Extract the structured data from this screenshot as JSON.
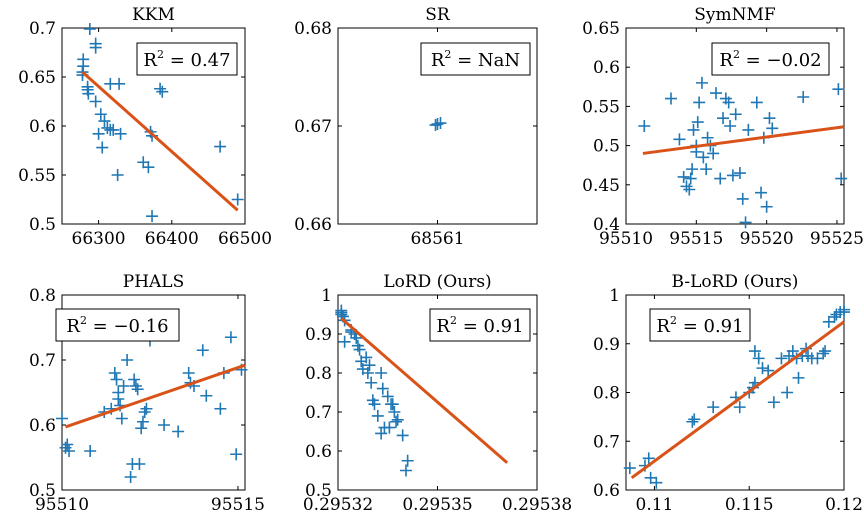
{
  "colors": {
    "points": "#1f77b4",
    "fit": "#d95319"
  },
  "chart_data": [
    {
      "type": "scatter",
      "title": "KKM",
      "r2_label": "0.47",
      "xlim": [
        66250,
        66500
      ],
      "ylim": [
        0.5,
        0.7
      ],
      "xticks": [
        66300,
        66400,
        66500
      ],
      "xtick_labels": [
        "66300",
        "66400",
        "66500"
      ],
      "yticks": [
        0.5,
        0.55,
        0.6,
        0.65,
        0.7
      ],
      "ytick_labels": [
        "0.5",
        "0.55",
        "0.6",
        "0.65",
        "0.7"
      ],
      "fit": [
        [
          66278,
          0.655
        ],
        [
          66490,
          0.514
        ]
      ],
      "points": [
        [
          66288,
          0.699
        ],
        [
          66296,
          0.684
        ],
        [
          66296,
          0.68
        ],
        [
          66279,
          0.668
        ],
        [
          66279,
          0.661
        ],
        [
          66278,
          0.655
        ],
        [
          66278,
          0.652
        ],
        [
          66285,
          0.64
        ],
        [
          66285,
          0.637
        ],
        [
          66286,
          0.633
        ],
        [
          66316,
          0.643
        ],
        [
          66328,
          0.643
        ],
        [
          66296,
          0.625
        ],
        [
          66303,
          0.612
        ],
        [
          66308,
          0.605
        ],
        [
          66312,
          0.598
        ],
        [
          66316,
          0.596
        ],
        [
          66320,
          0.596
        ],
        [
          66300,
          0.592
        ],
        [
          66330,
          0.592
        ],
        [
          66305,
          0.578
        ],
        [
          66326,
          0.55
        ],
        [
          66361,
          0.563
        ],
        [
          66368,
          0.558
        ],
        [
          66371,
          0.594
        ],
        [
          66373,
          0.59
        ],
        [
          66384,
          0.638
        ],
        [
          66387,
          0.635
        ],
        [
          66373,
          0.508
        ],
        [
          66466,
          0.579
        ],
        [
          66490,
          0.525
        ]
      ]
    },
    {
      "type": "scatter",
      "title": "SR",
      "r2_label": "NaN",
      "xlim": [
        68560,
        68562
      ],
      "ylim": [
        0.66,
        0.68
      ],
      "xticks": [
        68561
      ],
      "xtick_labels": [
        "68561"
      ],
      "yticks": [
        0.66,
        0.67,
        0.68
      ],
      "ytick_labels": [
        "0.66",
        "0.67",
        "0.68"
      ],
      "fit": [],
      "points": [
        [
          68561.0,
          0.6702
        ],
        [
          68561.03,
          0.6703
        ],
        [
          68560.98,
          0.6701
        ]
      ]
    },
    {
      "type": "scatter",
      "title": "SymNMF",
      "r2_label": "−0.02",
      "xlim": [
        95510,
        95525.5
      ],
      "ylim": [
        0.4,
        0.65
      ],
      "xticks": [
        95510,
        95515,
        95520,
        95525
      ],
      "xtick_labels": [
        "95510",
        "95515",
        "95520",
        "95525"
      ],
      "yticks": [
        0.4,
        0.45,
        0.5,
        0.55,
        0.6,
        0.65
      ],
      "ytick_labels": [
        "0.4",
        "0.45",
        "0.5",
        "0.55",
        "0.6",
        "0.65"
      ],
      "fit": [
        [
          95511.2,
          0.49
        ],
        [
          95525.5,
          0.524
        ]
      ],
      "points": [
        [
          95511.3,
          0.525
        ],
        [
          95513.2,
          0.56
        ],
        [
          95513.8,
          0.508
        ],
        [
          95514.1,
          0.46
        ],
        [
          95514.3,
          0.448
        ],
        [
          95514.5,
          0.444
        ],
        [
          95514.6,
          0.458
        ],
        [
          95514.7,
          0.47
        ],
        [
          95514.8,
          0.52
        ],
        [
          95515.0,
          0.5
        ],
        [
          95515.0,
          0.492
        ],
        [
          95515.1,
          0.53
        ],
        [
          95515.2,
          0.555
        ],
        [
          95515.4,
          0.58
        ],
        [
          95515.5,
          0.485
        ],
        [
          95515.7,
          0.47
        ],
        [
          95515.8,
          0.51
        ],
        [
          95516.0,
          0.5
        ],
        [
          95516.2,
          0.49
        ],
        [
          95516.4,
          0.567
        ],
        [
          95516.7,
          0.458
        ],
        [
          95516.9,
          0.535
        ],
        [
          95517.1,
          0.56
        ],
        [
          95517.3,
          0.555
        ],
        [
          95517.4,
          0.525
        ],
        [
          95517.6,
          0.462
        ],
        [
          95517.8,
          0.54
        ],
        [
          95518.1,
          0.465
        ],
        [
          95518.3,
          0.432
        ],
        [
          95518.5,
          0.402
        ],
        [
          95518.7,
          0.52
        ],
        [
          95519.3,
          0.555
        ],
        [
          95519.6,
          0.44
        ],
        [
          95519.8,
          0.51
        ],
        [
          95520.0,
          0.422
        ],
        [
          95520.2,
          0.535
        ],
        [
          95520.4,
          0.522
        ],
        [
          95522.6,
          0.562
        ],
        [
          95525.1,
          0.572
        ],
        [
          95525.3,
          0.458
        ]
      ]
    },
    {
      "type": "scatter",
      "title": "PHALS",
      "r2_label": "−0.16",
      "xlim": [
        95510,
        95515.2
      ],
      "ylim": [
        0.5,
        0.8
      ],
      "xticks": [
        95510,
        95515
      ],
      "xtick_labels": [
        "95510",
        "95515"
      ],
      "yticks": [
        0.5,
        0.6,
        0.7,
        0.8
      ],
      "ytick_labels": [
        "0.5",
        "0.6",
        "0.7",
        "0.8"
      ],
      "fit": [
        [
          95510.1,
          0.597
        ],
        [
          95515.2,
          0.692
        ]
      ],
      "points": [
        [
          95510.0,
          0.61
        ],
        [
          95510.1,
          0.565
        ],
        [
          95510.15,
          0.57
        ],
        [
          95510.2,
          0.56
        ],
        [
          95510.2,
          0.75
        ],
        [
          95510.8,
          0.56
        ],
        [
          95511.2,
          0.62
        ],
        [
          95511.4,
          0.625
        ],
        [
          95511.5,
          0.68
        ],
        [
          95511.55,
          0.67
        ],
        [
          95511.6,
          0.65
        ],
        [
          95511.6,
          0.64
        ],
        [
          95511.65,
          0.63
        ],
        [
          95511.7,
          0.61
        ],
        [
          95511.75,
          0.66
        ],
        [
          95511.85,
          0.7
        ],
        [
          95511.95,
          0.52
        ],
        [
          95512.0,
          0.54
        ],
        [
          95512.05,
          0.67
        ],
        [
          95512.1,
          0.66
        ],
        [
          95512.15,
          0.655
        ],
        [
          95512.2,
          0.54
        ],
        [
          95512.25,
          0.595
        ],
        [
          95512.3,
          0.605
        ],
        [
          95512.35,
          0.62
        ],
        [
          95512.4,
          0.625
        ],
        [
          95512.5,
          0.73
        ],
        [
          95512.9,
          0.6
        ],
        [
          95513.3,
          0.59
        ],
        [
          95513.6,
          0.68
        ],
        [
          95513.65,
          0.665
        ],
        [
          95513.75,
          0.66
        ],
        [
          95514.0,
          0.715
        ],
        [
          95514.1,
          0.645
        ],
        [
          95514.5,
          0.625
        ],
        [
          95514.6,
          0.68
        ],
        [
          95514.8,
          0.735
        ],
        [
          95514.95,
          0.555
        ],
        [
          95515.1,
          0.685
        ]
      ]
    },
    {
      "type": "scatter",
      "title": "LoRD (Ours)",
      "r2_label": "0.91",
      "xlim": [
        0.29532,
        0.29538
      ],
      "ylim": [
        0.5,
        1.0
      ],
      "xticks": [
        0.29532,
        0.29535,
        0.29538
      ],
      "xtick_labels": [
        "0.29532",
        "0.29535",
        "0.29538"
      ],
      "yticks": [
        0.5,
        0.6,
        0.7,
        0.8,
        0.9,
        1.0
      ],
      "ytick_labels": [
        "0.5",
        "0.6",
        "0.7",
        "0.8",
        "0.9",
        "1"
      ],
      "fit": [
        [
          0.295321,
          0.94
        ],
        [
          0.295371,
          0.57
        ]
      ],
      "points": [
        [
          0.295321,
          0.96
        ],
        [
          0.295321,
          0.955
        ],
        [
          0.295321,
          0.95
        ],
        [
          0.2953215,
          0.945
        ],
        [
          0.295322,
          0.935
        ],
        [
          0.295322,
          0.88
        ],
        [
          0.295324,
          0.91
        ],
        [
          0.295324,
          0.905
        ],
        [
          0.295325,
          0.9
        ],
        [
          0.2953255,
          0.89
        ],
        [
          0.295326,
          0.87
        ],
        [
          0.2953265,
          0.86
        ],
        [
          0.295327,
          0.83
        ],
        [
          0.2953275,
          0.81
        ],
        [
          0.2953285,
          0.84
        ],
        [
          0.295329,
          0.8
        ],
        [
          0.2953295,
          0.82
        ],
        [
          0.29533,
          0.775
        ],
        [
          0.2953305,
          0.73
        ],
        [
          0.295331,
          0.72
        ],
        [
          0.295332,
          0.69
        ],
        [
          0.295333,
          0.8
        ],
        [
          0.295333,
          0.645
        ],
        [
          0.2953335,
          0.76
        ],
        [
          0.295334,
          0.66
        ],
        [
          0.295335,
          0.74
        ],
        [
          0.2953355,
          0.66
        ],
        [
          0.295336,
          0.72
        ],
        [
          0.2953365,
          0.72
        ],
        [
          0.295337,
          0.7
        ],
        [
          0.2953375,
          0.675
        ],
        [
          0.295338,
          0.68
        ],
        [
          0.2953395,
          0.64
        ],
        [
          0.2953405,
          0.55
        ],
        [
          0.295341,
          0.575
        ]
      ]
    },
    {
      "type": "scatter",
      "title": "B-LoRD (Ours)",
      "r2_label": "0.91",
      "xlim": [
        0.1085,
        0.12
      ],
      "ylim": [
        0.6,
        1.0
      ],
      "xticks": [
        0.11,
        0.115,
        0.12
      ],
      "xtick_labels": [
        "0.11",
        "0.115",
        "0.12"
      ],
      "yticks": [
        0.6,
        0.7,
        0.8,
        0.9,
        1.0
      ],
      "ytick_labels": [
        "0.6",
        "0.7",
        "0.8",
        "0.9",
        "1"
      ],
      "fit": [
        [
          0.1088,
          0.625
        ],
        [
          0.12,
          0.945
        ]
      ],
      "points": [
        [
          0.1087,
          0.645
        ],
        [
          0.1095,
          0.65
        ],
        [
          0.1097,
          0.665
        ],
        [
          0.1098,
          0.625
        ],
        [
          0.1101,
          0.615
        ],
        [
          0.112,
          0.74
        ],
        [
          0.1121,
          0.745
        ],
        [
          0.1131,
          0.77
        ],
        [
          0.1143,
          0.79
        ],
        [
          0.1145,
          0.77
        ],
        [
          0.115,
          0.8
        ],
        [
          0.1152,
          0.81
        ],
        [
          0.1153,
          0.82
        ],
        [
          0.1153,
          0.885
        ],
        [
          0.1155,
          0.87
        ],
        [
          0.1157,
          0.85
        ],
        [
          0.116,
          0.845
        ],
        [
          0.1163,
          0.78
        ],
        [
          0.1167,
          0.87
        ],
        [
          0.117,
          0.8
        ],
        [
          0.1171,
          0.875
        ],
        [
          0.1173,
          0.885
        ],
        [
          0.1175,
          0.87
        ],
        [
          0.1176,
          0.83
        ],
        [
          0.1178,
          0.875
        ],
        [
          0.118,
          0.89
        ],
        [
          0.1181,
          0.875
        ],
        [
          0.1183,
          0.87
        ],
        [
          0.1186,
          0.87
        ],
        [
          0.1189,
          0.88
        ],
        [
          0.119,
          0.885
        ],
        [
          0.1192,
          0.945
        ],
        [
          0.1195,
          0.955
        ],
        [
          0.1196,
          0.96
        ],
        [
          0.1198,
          0.965
        ],
        [
          0.12,
          0.97
        ],
        [
          0.12,
          0.965
        ]
      ]
    }
  ]
}
